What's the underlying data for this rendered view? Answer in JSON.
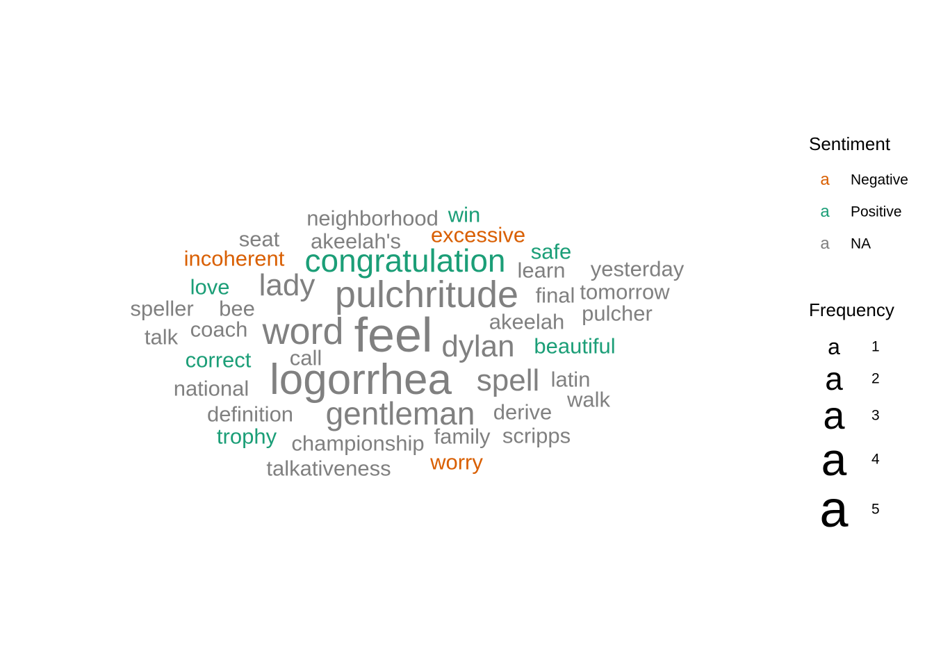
{
  "chart_data": {
    "type": "wordcloud",
    "legend": {
      "sentiment_title": "Sentiment",
      "frequency_title": "Frequency",
      "glyph": "a",
      "sentiment_items": [
        {
          "label": "Negative",
          "color": "#d95f02"
        },
        {
          "label": "Positive",
          "color": "#1b9e77"
        },
        {
          "label": "NA",
          "color": "#808080"
        }
      ],
      "frequency_items": [
        "1",
        "2",
        "3",
        "4",
        "5"
      ]
    },
    "words": [
      {
        "text": "feel",
        "freq": 5,
        "sentiment": "NA"
      },
      {
        "text": "logorrhea",
        "freq": 5,
        "sentiment": "NA"
      },
      {
        "text": "word",
        "freq": 4,
        "sentiment": "NA"
      },
      {
        "text": "pulchritude",
        "freq": 4,
        "sentiment": "NA"
      },
      {
        "text": "congratulation",
        "freq": 3,
        "sentiment": "Positive"
      },
      {
        "text": "gentleman",
        "freq": 3,
        "sentiment": "NA"
      },
      {
        "text": "lady",
        "freq": 3,
        "sentiment": "NA"
      },
      {
        "text": "dylan",
        "freq": 3,
        "sentiment": "NA"
      },
      {
        "text": "spell",
        "freq": 3,
        "sentiment": "NA"
      },
      {
        "text": "neighborhood",
        "freq": 2,
        "sentiment": "NA"
      },
      {
        "text": "win",
        "freq": 2,
        "sentiment": "Positive"
      },
      {
        "text": "seat",
        "freq": 2,
        "sentiment": "NA"
      },
      {
        "text": "akeelah's",
        "freq": 2,
        "sentiment": "NA"
      },
      {
        "text": "excessive",
        "freq": 2,
        "sentiment": "Negative"
      },
      {
        "text": "incoherent",
        "freq": 2,
        "sentiment": "Negative"
      },
      {
        "text": "safe",
        "freq": 2,
        "sentiment": "Positive"
      },
      {
        "text": "learn",
        "freq": 2,
        "sentiment": "NA"
      },
      {
        "text": "yesterday",
        "freq": 2,
        "sentiment": "NA"
      },
      {
        "text": "love",
        "freq": 2,
        "sentiment": "Positive"
      },
      {
        "text": "final",
        "freq": 2,
        "sentiment": "NA"
      },
      {
        "text": "tomorrow",
        "freq": 2,
        "sentiment": "NA"
      },
      {
        "text": "speller",
        "freq": 2,
        "sentiment": "NA"
      },
      {
        "text": "bee",
        "freq": 2,
        "sentiment": "NA"
      },
      {
        "text": "pulcher",
        "freq": 2,
        "sentiment": "NA"
      },
      {
        "text": "akeelah",
        "freq": 2,
        "sentiment": "NA"
      },
      {
        "text": "coach",
        "freq": 2,
        "sentiment": "NA"
      },
      {
        "text": "talk",
        "freq": 2,
        "sentiment": "NA"
      },
      {
        "text": "beautiful",
        "freq": 2,
        "sentiment": "Positive"
      },
      {
        "text": "correct",
        "freq": 2,
        "sentiment": "Positive"
      },
      {
        "text": "call",
        "freq": 2,
        "sentiment": "NA"
      },
      {
        "text": "latin",
        "freq": 2,
        "sentiment": "NA"
      },
      {
        "text": "national",
        "freq": 2,
        "sentiment": "NA"
      },
      {
        "text": "walk",
        "freq": 2,
        "sentiment": "NA"
      },
      {
        "text": "derive",
        "freq": 2,
        "sentiment": "NA"
      },
      {
        "text": "definition",
        "freq": 2,
        "sentiment": "NA"
      },
      {
        "text": "trophy",
        "freq": 2,
        "sentiment": "Positive"
      },
      {
        "text": "family",
        "freq": 2,
        "sentiment": "NA"
      },
      {
        "text": "scripps",
        "freq": 2,
        "sentiment": "NA"
      },
      {
        "text": "championship",
        "freq": 2,
        "sentiment": "NA"
      },
      {
        "text": "worry",
        "freq": 2,
        "sentiment": "Negative"
      },
      {
        "text": "talkativeness",
        "freq": 2,
        "sentiment": "NA"
      }
    ]
  }
}
